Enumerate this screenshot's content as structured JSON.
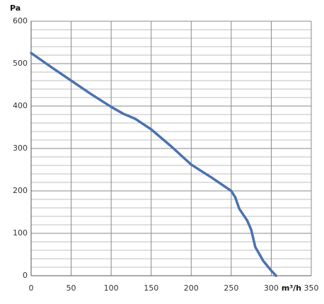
{
  "chart_data": {
    "type": "line",
    "y_label": "Pa",
    "x_label": "m³/h",
    "x": [
      0,
      25,
      50,
      75,
      100,
      115,
      130,
      150,
      175,
      200,
      225,
      250,
      255,
      260,
      270,
      275,
      280,
      290,
      300,
      306
    ],
    "series": [
      {
        "color": "#4a72b0",
        "values": [
          525,
          492,
          460,
          428,
          398,
          382,
          370,
          345,
          305,
          262,
          232,
          200,
          185,
          158,
          130,
          108,
          68,
          35,
          12,
          0
        ]
      }
    ],
    "xlim": [
      0,
      350
    ],
    "xticks": [
      0,
      50,
      100,
      150,
      200,
      250,
      300,
      350
    ],
    "ylim": [
      0,
      600
    ],
    "yticks": [
      0,
      100,
      200,
      300,
      400,
      500,
      600
    ],
    "grid": true
  }
}
